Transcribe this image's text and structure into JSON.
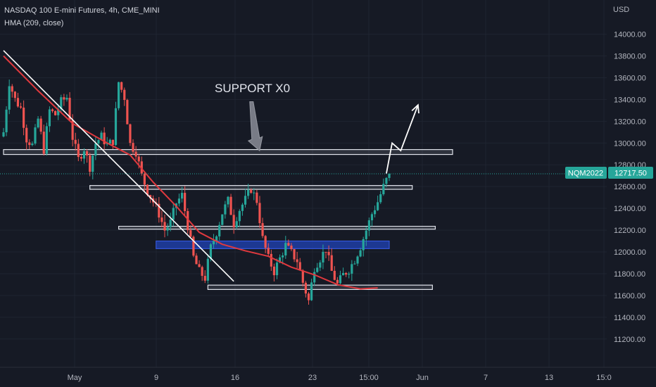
{
  "header": {
    "title": "NASDAQ 100 E-mini Futures, 4h, CME_MINI",
    "indicator": "HMA (209, close)",
    "currency": "USD"
  },
  "annotations": {
    "support_label": "SUPPORT  X0"
  },
  "price_badges": {
    "symbol": "NQM2022",
    "last_price": "12717.50"
  },
  "colors": {
    "background": "#161a25",
    "up": "#26a69a",
    "down": "#ef5350",
    "hma": "#e0393e",
    "zone_blue": "#1f3ea6",
    "badge": "#26a69a"
  },
  "chart_data": {
    "type": "candlestick",
    "symbol": "NQM2022",
    "timeframe": "4h",
    "y_axis": {
      "ylim": [
        11050,
        14120
      ],
      "ticks": [
        "14000.00",
        "13800.00",
        "13600.00",
        "13400.00",
        "13200.00",
        "13000.00",
        "12800.00",
        "12600.00",
        "12400.00",
        "12200.00",
        "12000.00",
        "11800.00",
        "11600.00",
        "11400.00",
        "11200.00"
      ]
    },
    "x_axis": {
      "ticks": [
        "May",
        "9",
        "16",
        "23",
        "15:00",
        "Jun",
        "7",
        "13",
        "15:0"
      ]
    },
    "last_price": 12717.5,
    "close_path": [
      [
        0,
        13100
      ],
      [
        2,
        13560
      ],
      [
        4,
        13400
      ],
      [
        6,
        13320
      ],
      [
        8,
        13040
      ],
      [
        10,
        12980
      ],
      [
        12,
        13220
      ],
      [
        14,
        12940
      ],
      [
        16,
        13300
      ],
      [
        18,
        13260
      ],
      [
        20,
        13380
      ],
      [
        22,
        13420
      ],
      [
        24,
        13050
      ],
      [
        26,
        12850
      ],
      [
        28,
        12950
      ],
      [
        30,
        12780
      ],
      [
        32,
        13000
      ],
      [
        34,
        13060
      ],
      [
        36,
        12980
      ],
      [
        38,
        13020
      ],
      [
        40,
        13560
      ],
      [
        42,
        13420
      ],
      [
        44,
        12990
      ],
      [
        46,
        12920
      ],
      [
        48,
        12700
      ],
      [
        50,
        12560
      ],
      [
        52,
        12460
      ],
      [
        54,
        12350
      ],
      [
        56,
        12200
      ],
      [
        58,
        12270
      ],
      [
        60,
        12450
      ],
      [
        62,
        12520
      ],
      [
        64,
        12240
      ],
      [
        66,
        11950
      ],
      [
        68,
        11820
      ],
      [
        70,
        11760
      ],
      [
        72,
        12040
      ],
      [
        74,
        12180
      ],
      [
        76,
        12360
      ],
      [
        78,
        12470
      ],
      [
        80,
        12260
      ],
      [
        82,
        12390
      ],
      [
        84,
        12480
      ],
      [
        86,
        12580
      ],
      [
        88,
        12470
      ],
      [
        90,
        12120
      ],
      [
        92,
        11940
      ],
      [
        94,
        11820
      ],
      [
        96,
        11940
      ],
      [
        98,
        12060
      ],
      [
        100,
        11990
      ],
      [
        102,
        11920
      ],
      [
        104,
        11720
      ],
      [
        106,
        11550
      ],
      [
        108,
        11860
      ],
      [
        110,
        11940
      ],
      [
        112,
        12030
      ],
      [
        114,
        11820
      ],
      [
        116,
        11700
      ],
      [
        118,
        11790
      ],
      [
        120,
        11840
      ],
      [
        122,
        11930
      ],
      [
        124,
        12050
      ],
      [
        126,
        12200
      ],
      [
        128,
        12350
      ],
      [
        130,
        12460
      ],
      [
        132,
        12600
      ],
      [
        134,
        12717.5
      ]
    ],
    "hma": [
      [
        0,
        13800
      ],
      [
        12,
        13480
      ],
      [
        24,
        13180
      ],
      [
        36,
        13000
      ],
      [
        44,
        12890
      ],
      [
        52,
        12640
      ],
      [
        60,
        12420
      ],
      [
        68,
        12180
      ],
      [
        76,
        12070
      ],
      [
        84,
        12010
      ],
      [
        92,
        11960
      ],
      [
        100,
        11860
      ],
      [
        108,
        11790
      ],
      [
        116,
        11700
      ],
      [
        124,
        11660
      ],
      [
        130,
        11670
      ]
    ],
    "zones": [
      {
        "from": 0,
        "to": 156,
        "low": 12895,
        "high": 12940,
        "color": "white"
      },
      {
        "from": 30,
        "to": 142,
        "low": 12575,
        "high": 12610,
        "color": "white"
      },
      {
        "from": 40,
        "to": 150,
        "low": 12210,
        "high": 12235,
        "color": "white"
      },
      {
        "from": 53,
        "to": 134,
        "low": 12030,
        "high": 12100,
        "color": "blue"
      },
      {
        "from": 71,
        "to": 149,
        "low": 11655,
        "high": 11695,
        "color": "white"
      }
    ],
    "trendline": [
      [
        0,
        13850
      ],
      [
        80,
        11730
      ]
    ],
    "projection": [
      [
        133,
        12720
      ],
      [
        135,
        13000
      ],
      [
        138,
        12930
      ],
      [
        144,
        13350
      ]
    ],
    "arrow_down": {
      "at": 87,
      "from": 13380,
      "to": 12930
    }
  }
}
